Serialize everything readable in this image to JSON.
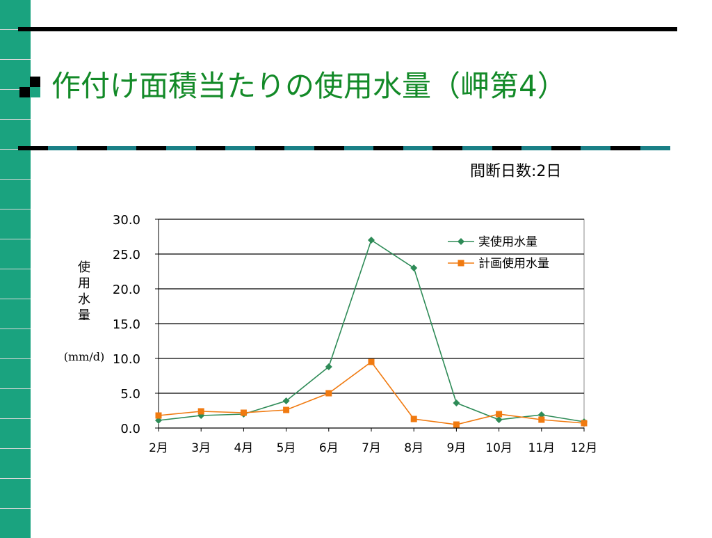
{
  "slide": {
    "title": "作付け面積当たりの使用水量（岬第4）",
    "subtitle": "間断日数:2日"
  },
  "colors": {
    "title": "#138a28",
    "strip_accent": "#1aa37f",
    "strip_base": "#d9d9d9",
    "series_actual": "#2e8b57",
    "series_planned": "#f07a10"
  },
  "chart_data": {
    "type": "line",
    "categories": [
      "2月",
      "3月",
      "4月",
      "5月",
      "6月",
      "7月",
      "8月",
      "9月",
      "10月",
      "11月",
      "12月"
    ],
    "series": [
      {
        "name": "実使用水量",
        "values": [
          1.1,
          1.8,
          2.0,
          3.9,
          8.8,
          27.0,
          23.0,
          3.6,
          1.2,
          1.9,
          0.9
        ]
      },
      {
        "name": "計画使用水量",
        "values": [
          1.8,
          2.4,
          2.2,
          2.6,
          5.0,
          9.5,
          1.3,
          0.5,
          2.0,
          1.2,
          0.7
        ]
      }
    ],
    "ylabel": "使用水量",
    "yunit": "(mm/d)",
    "ylim": [
      0,
      30
    ],
    "yticks": [
      "0.0",
      "5.0",
      "10.0",
      "15.0",
      "20.0",
      "25.0",
      "30.0"
    ],
    "grid": true,
    "legend": "top-right"
  }
}
